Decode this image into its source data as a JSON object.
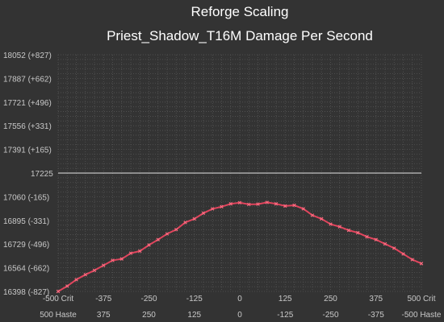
{
  "chart_data": {
    "type": "line",
    "title": "Reforge Scaling",
    "subtitle": "Priest_Shadow_T16M Damage Per Second",
    "baseline": 17225,
    "ylim": [
      16398,
      18052
    ],
    "y_tick_labels": [
      "18052 (+827)",
      "17887 (+662)",
      "17721 (+496)",
      "17556 (+331)",
      "17391 (+165)",
      "17225",
      "17060 (-165)",
      "16895 (-331)",
      "16729 (-496)",
      "16564 (-662)",
      "16398 (-827)"
    ],
    "x_tick_labels_crit": [
      "-500 Crit",
      "-375",
      "-250",
      "-125",
      "0",
      "125",
      "250",
      "375",
      "500 Crit"
    ],
    "x_tick_labels_haste": [
      "500 Haste",
      "375",
      "250",
      "125",
      "0",
      "-125",
      "-250",
      "-375",
      "-500 Haste"
    ],
    "xlim": [
      -500,
      500
    ],
    "x": [
      -500,
      -475,
      -450,
      -425,
      -400,
      -375,
      -350,
      -325,
      -300,
      -275,
      -250,
      -225,
      -200,
      -175,
      -150,
      -125,
      -100,
      -75,
      -50,
      -25,
      0,
      25,
      50,
      75,
      100,
      125,
      150,
      175,
      200,
      225,
      250,
      275,
      300,
      325,
      350,
      375,
      400,
      425,
      450,
      475,
      500
    ],
    "series": [
      {
        "values": [
          16398,
          16435,
          16480,
          16515,
          16545,
          16580,
          16615,
          16625,
          16665,
          16680,
          16722,
          16760,
          16800,
          16830,
          16880,
          16905,
          16945,
          16975,
          16990,
          17010,
          17018,
          17006,
          17008,
          17020,
          17010,
          16995,
          17000,
          16975,
          16930,
          16905,
          16868,
          16850,
          16825,
          16808,
          16780,
          16760,
          16730,
          16700,
          16660,
          16620,
          16593
        ]
      }
    ],
    "colors": {
      "line": "#e0455d",
      "marker": "#ff6b80",
      "baseline": "#e6e6e6",
      "grid": "#555555",
      "background": "#333333"
    },
    "grid": true
  }
}
